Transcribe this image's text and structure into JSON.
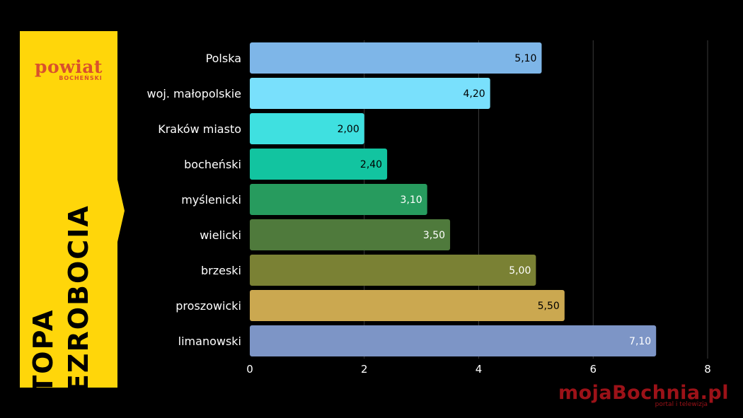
{
  "logo": {
    "text": "powiat",
    "subtext": "BOCHEŃSKI"
  },
  "title": {
    "line1": "STOPA",
    "line2": "BEZROBOCIA"
  },
  "watermark": {
    "text": "mojaBochnia.pl",
    "subtext": "portal i telewizja"
  },
  "chart_data": {
    "type": "bar",
    "orientation": "horizontal",
    "categories": [
      "Polska",
      "woj. małopolskie",
      "Kraków miasto",
      "bocheński",
      "myślenicki",
      "wielicki",
      "brzeski",
      "proszowicki",
      "limanowski"
    ],
    "values": [
      5.1,
      4.2,
      2.0,
      2.4,
      3.1,
      3.5,
      5.0,
      5.5,
      7.1
    ],
    "value_labels": [
      "5,10",
      "4,20",
      "2,00",
      "2,40",
      "3,10",
      "3,50",
      "5,00",
      "5,50",
      "7,10"
    ],
    "colors": [
      "#7eb6e8",
      "#79e0fc",
      "#3fe0e0",
      "#12c4a0",
      "#279b5e",
      "#4f7a3c",
      "#7a8134",
      "#cba850",
      "#7d95c6"
    ],
    "label_colors": [
      "#000000",
      "#000000",
      "#000000",
      "#000000",
      "#ffffff",
      "#ffffff",
      "#ffffff",
      "#000000",
      "#ffffff"
    ],
    "xlim": [
      0,
      8
    ],
    "xticks": [
      0,
      2,
      4,
      6,
      8
    ],
    "grid": true,
    "title": "",
    "xlabel": "",
    "ylabel": ""
  }
}
